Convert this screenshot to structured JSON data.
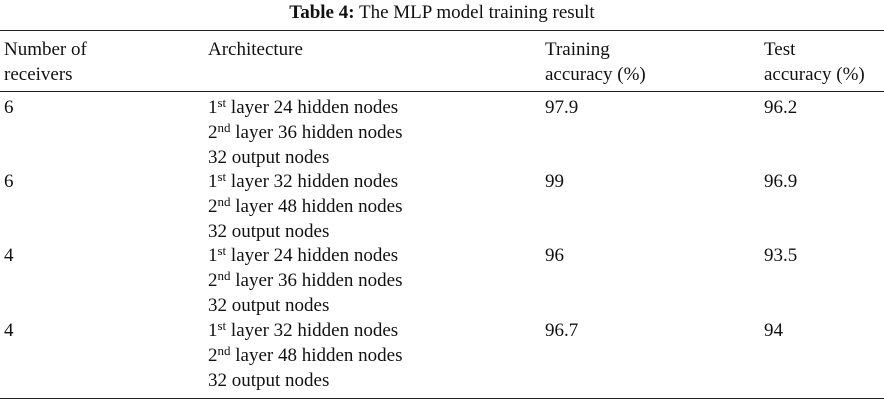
{
  "caption": {
    "label": "Table 4:",
    "text": "The MLP model training result"
  },
  "table": {
    "headers": [
      [
        "Number of",
        "receivers"
      ],
      [
        "Architecture"
      ],
      [
        "Training",
        "accuracy (%)"
      ],
      [
        "Test",
        "accuracy (%)"
      ]
    ],
    "rows": [
      {
        "receivers": "6",
        "architecture": [
          {
            "num": "1",
            "sup": "st",
            "rest": "layer 24 hidden nodes"
          },
          {
            "num": "2",
            "sup": "nd",
            "rest": "layer 36 hidden nodes"
          },
          {
            "text": "32 output nodes"
          }
        ],
        "training": "97.9",
        "test": "96.2"
      },
      {
        "receivers": "6",
        "architecture": [
          {
            "num": "1",
            "sup": "st",
            "rest": "layer 32 hidden nodes"
          },
          {
            "num": "2",
            "sup": "nd",
            "rest": "layer 48 hidden nodes"
          },
          {
            "text": "32 output nodes"
          }
        ],
        "training": "99",
        "test": "96.9"
      },
      {
        "receivers": "4",
        "architecture": [
          {
            "num": "1",
            "sup": "st",
            "rest": "layer 24 hidden nodes"
          },
          {
            "num": "2",
            "sup": "nd",
            "rest": "layer 36 hidden nodes"
          },
          {
            "text": "32 output nodes"
          }
        ],
        "training": "96",
        "test": "93.5"
      },
      {
        "receivers": "4",
        "architecture": [
          {
            "num": "1",
            "sup": "st",
            "rest": "layer 32 hidden nodes"
          },
          {
            "num": "2",
            "sup": "nd",
            "rest": "layer 48 hidden nodes"
          },
          {
            "text": "32 output nodes"
          }
        ],
        "training": "96.7",
        "test": "94"
      }
    ]
  }
}
